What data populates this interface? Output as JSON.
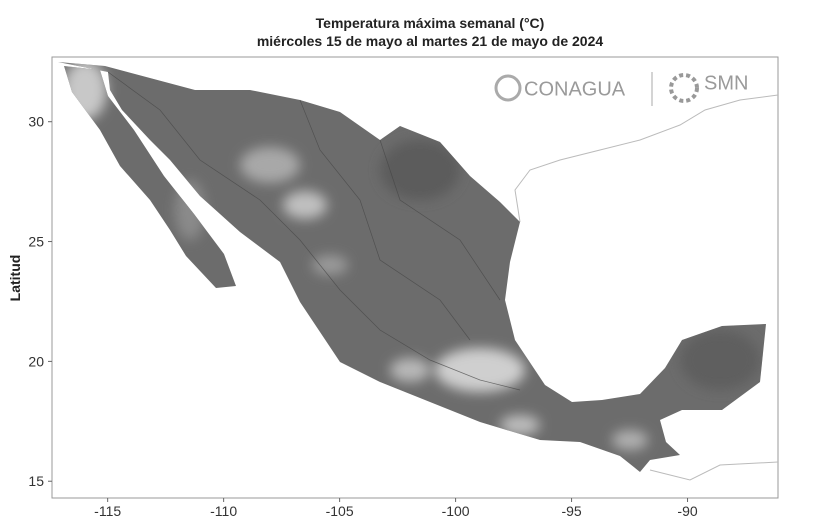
{
  "map": {
    "title": "Temperatura máxima semanal (°C)",
    "subtitle": "miércoles 15 de mayo al martes 21 de mayo de 2024",
    "y_axis_label": "Latitud",
    "xlim": [
      -117.4,
      -86.1
    ],
    "ylim": [
      14.3,
      32.7
    ],
    "xticks": [
      -115,
      -110,
      -105,
      -100,
      -95,
      -90
    ],
    "yticks": [
      15,
      20,
      25,
      30
    ],
    "logos": [
      "CONAGUA",
      "SMN"
    ]
  }
}
